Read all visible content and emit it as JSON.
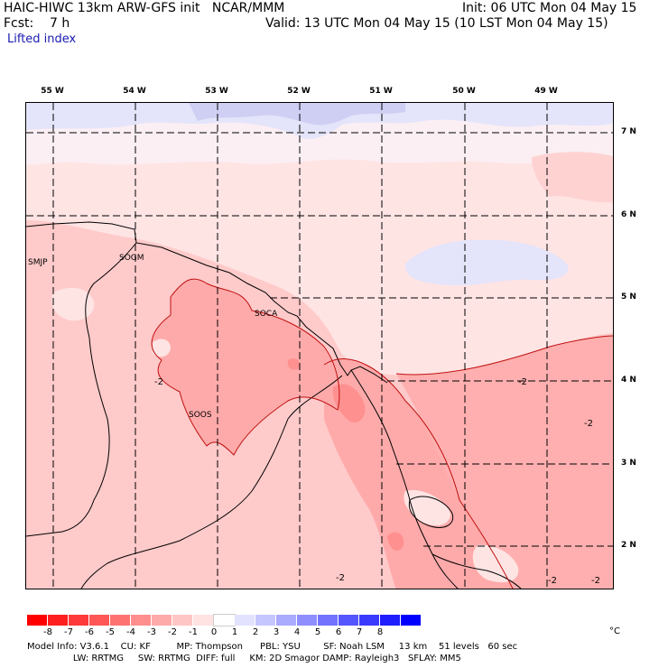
{
  "header": {
    "model_line": "HAIC-HIWC 13km ARW-GFS init   NCAR/MMM",
    "init_line": "Init: 06 UTC Mon 04 May 15",
    "fcst_line": "Fcst:    7 h",
    "valid_line": "Valid: 13 UTC Mon 04 May 15 (10 LST Mon 04 May 15)",
    "field_name": "Lifted index"
  },
  "map": {
    "longitude_labels": [
      "55 W",
      "54 W",
      "53 W",
      "52 W",
      "51 W",
      "50 W",
      "49 W"
    ],
    "latitude_labels": [
      "7 N",
      "6 N",
      "5 N",
      "4 N",
      "3 N",
      "2 N"
    ],
    "station_labels": [
      "SMJP",
      "SOGM",
      "SOCA",
      "SOOS"
    ],
    "contour_labels": [
      "-2",
      "-2",
      "-2",
      "-2",
      "-2",
      "-2"
    ],
    "station_color": "#dd00dd"
  },
  "colorbar": {
    "tick_labels": [
      "-8",
      "-7",
      "-6",
      "-5",
      "-4",
      "-3",
      "-2",
      "-1",
      "0",
      "1",
      "2",
      "3",
      "4",
      "5",
      "6",
      "7",
      "8"
    ],
    "unit": "°C",
    "colors": [
      "#ff0000",
      "#ff1e1e",
      "#ff3a3a",
      "#ff5656",
      "#ff7272",
      "#ff8e8e",
      "#ffaaaa",
      "#ffc6c6",
      "#ffe2e2",
      "#ffffff",
      "#e2e2ff",
      "#c6c6ff",
      "#aaaaff",
      "#8e8eff",
      "#7272ff",
      "#5656ff",
      "#3a3aff",
      "#1e1eff",
      "#0000ff"
    ]
  },
  "footer": {
    "line1": "Model Info: V3.6.1    CU: KF         MP: Thompson      PBL: YSU        SF: Noah LSM     13 km    51 levels   60 sec",
    "line2": "                LW: RRTMG     SW: RRTMG  DIFF: full     KM: 2D Smagor DAMP: Rayleigh3   SFLAY: MM5"
  }
}
